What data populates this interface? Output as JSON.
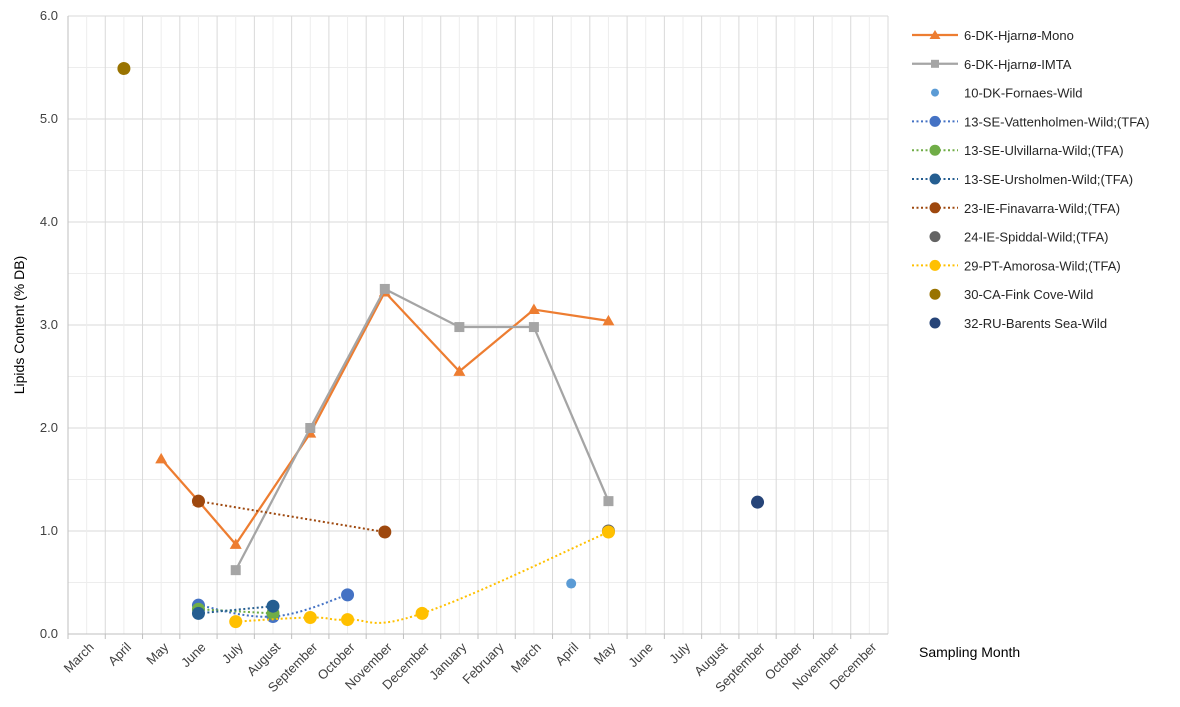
{
  "chart_data": {
    "type": "line",
    "title": "",
    "xlabel": "Sampling Month",
    "ylabel": "Lipids Content (% DB)",
    "ylim": [
      0,
      6
    ],
    "yticks": [
      "0.0",
      "1.0",
      "2.0",
      "3.0",
      "4.0",
      "5.0",
      "6.0"
    ],
    "grid": true,
    "legend_position": "right",
    "categories": [
      "March",
      "April",
      "May",
      "June",
      "July",
      "August",
      "September",
      "October",
      "November",
      "December",
      "January",
      "February",
      "March",
      "April",
      "May",
      "June",
      "July",
      "August",
      "September",
      "October",
      "November",
      "December"
    ],
    "series": [
      {
        "name": "6-DK-Hjarnø-Mono",
        "color": "#ED7D31",
        "line": "solid",
        "marker": "triangle",
        "points": [
          [
            2.5,
            1.7
          ],
          [
            3.5,
            1.29
          ],
          [
            4.5,
            0.87
          ],
          [
            6.5,
            1.95
          ],
          [
            8.5,
            3.32
          ],
          [
            10.5,
            2.55
          ],
          [
            12.5,
            3.15
          ],
          [
            14.5,
            3.04
          ]
        ]
      },
      {
        "name": "6-DK-Hjarnø-IMTA",
        "color": "#A5A5A5",
        "line": "solid",
        "marker": "square",
        "points": [
          [
            4.5,
            0.62
          ],
          [
            6.5,
            2.0
          ],
          [
            8.5,
            3.35
          ],
          [
            10.5,
            2.98
          ],
          [
            12.5,
            2.98
          ],
          [
            14.5,
            1.29
          ]
        ]
      },
      {
        "name": "10-DK-Fornaes-Wild",
        "color": "#5B9BD5",
        "line": "none",
        "marker": "circle-small",
        "points": [
          [
            13.5,
            0.49
          ]
        ]
      },
      {
        "name": "13-SE-Vattenholmen-Wild;(TFA)",
        "color": "#4472C4",
        "line": "dotted",
        "marker": "circle",
        "points": [
          [
            3.5,
            0.28
          ],
          [
            5.5,
            0.17
          ],
          [
            7.5,
            0.38
          ]
        ]
      },
      {
        "name": "13-SE-Ulvillarna-Wild;(TFA)",
        "color": "#70AD47",
        "line": "dotted",
        "marker": "circle",
        "points": [
          [
            3.5,
            0.24
          ],
          [
            5.5,
            0.2
          ]
        ]
      },
      {
        "name": "13-SE-Ursholmen-Wild;(TFA)",
        "color": "#255E91",
        "line": "dotted",
        "marker": "circle",
        "points": [
          [
            3.5,
            0.2
          ],
          [
            5.5,
            0.27
          ]
        ]
      },
      {
        "name": "23-IE-Finavarra-Wild;(TFA)",
        "color": "#9E480E",
        "line": "dotted",
        "marker": "circle",
        "points": [
          [
            3.5,
            1.29
          ],
          [
            8.5,
            0.99
          ]
        ]
      },
      {
        "name": "24-IE-Spiddal-Wild;(TFA)",
        "color": "#636363",
        "line": "none",
        "marker": "circle",
        "points": [
          [
            14.5,
            1.0
          ]
        ]
      },
      {
        "name": "29-PT-Amorosa-Wild;(TFA)",
        "color": "#FFC000",
        "line": "dotted",
        "marker": "circle",
        "points": [
          [
            4.5,
            0.12
          ],
          [
            6.5,
            0.16
          ],
          [
            7.5,
            0.14
          ],
          [
            9.5,
            0.2
          ],
          [
            14.5,
            0.99
          ]
        ]
      },
      {
        "name": "30-CA-Fink Cove-Wild",
        "color": "#997300",
        "line": "none",
        "marker": "circle",
        "points": [
          [
            1.5,
            5.49
          ]
        ]
      },
      {
        "name": "32-RU-Barents Sea-Wild",
        "color": "#264478",
        "line": "none",
        "marker": "circle",
        "points": [
          [
            18.5,
            1.28
          ]
        ]
      }
    ]
  }
}
